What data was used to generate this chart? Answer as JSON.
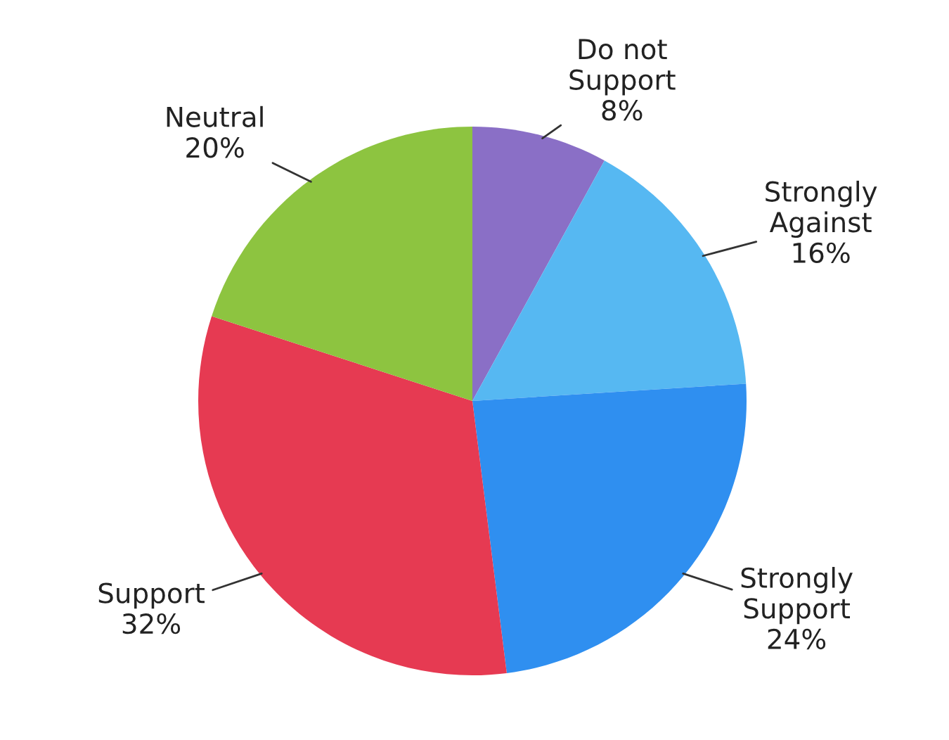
{
  "chart_data": {
    "type": "pie",
    "categories": [
      "Do not Support",
      "Strongly Against",
      "Strongly Support",
      "Support",
      "Neutral"
    ],
    "values": [
      8,
      16,
      24,
      32,
      20
    ],
    "colors": [
      "#8a6fc6",
      "#56b8f2",
      "#2f8ff0",
      "#e63a52",
      "#8dc440"
    ],
    "value_labels": [
      "8%",
      "16%",
      "24%",
      "32%",
      "20%"
    ]
  }
}
